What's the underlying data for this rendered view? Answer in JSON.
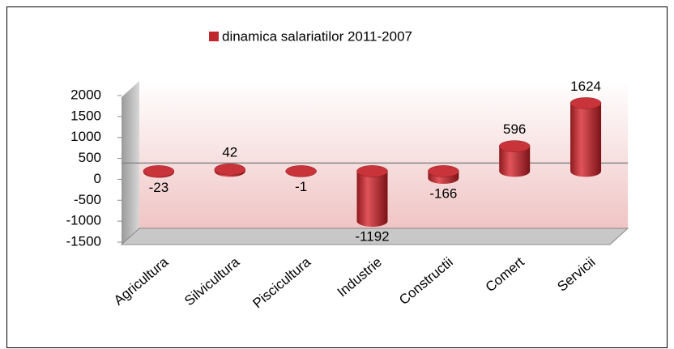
{
  "chart_data": {
    "type": "bar",
    "legend_labels": [
      "dinamica salariatilor 2011-2007"
    ],
    "categories": [
      "Agricultura",
      "Silvicultura",
      "Piscicultura",
      "Industrie",
      "Constructii",
      "Comert",
      "Servicii"
    ],
    "values": [
      -23,
      42,
      -1,
      -1192,
      -166,
      596,
      1624
    ],
    "color": "#c0272d",
    "ylim": [
      -1500,
      2000
    ],
    "yticks": [
      -1500,
      -1000,
      -500,
      0,
      500,
      1000,
      1500,
      2000
    ],
    "grid": false
  }
}
